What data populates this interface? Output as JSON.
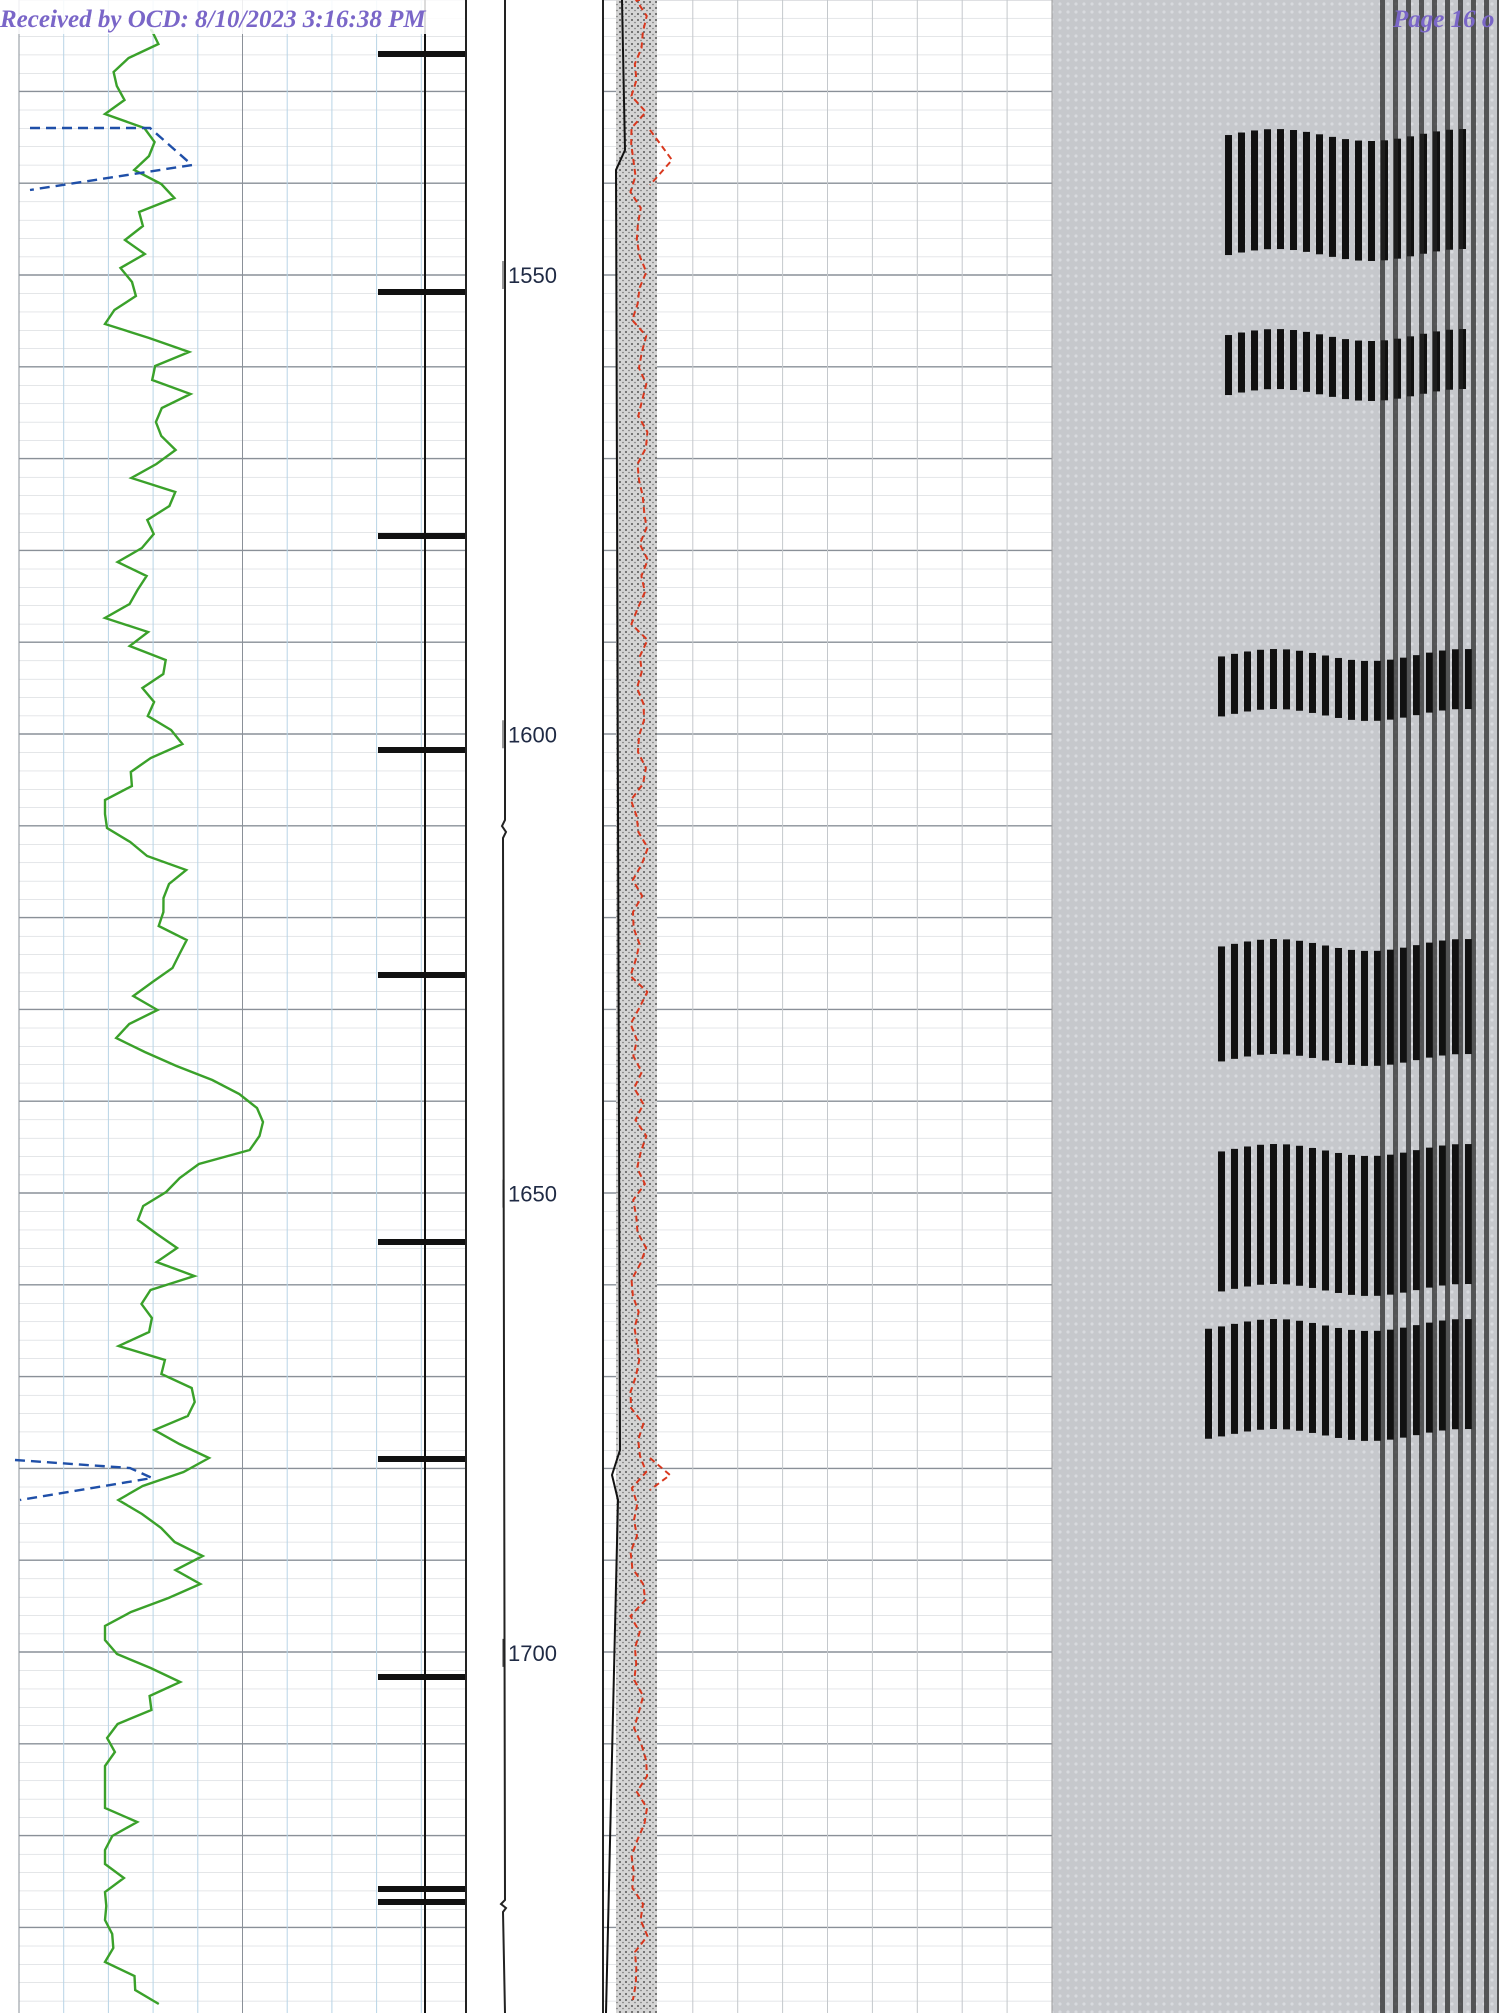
{
  "header": {
    "received": "Received by OCD: 8/10/2023 3:16:38 PM",
    "page": "Page 16 o"
  },
  "depth_labels": [
    1550,
    1600,
    1650,
    1700
  ]
}
